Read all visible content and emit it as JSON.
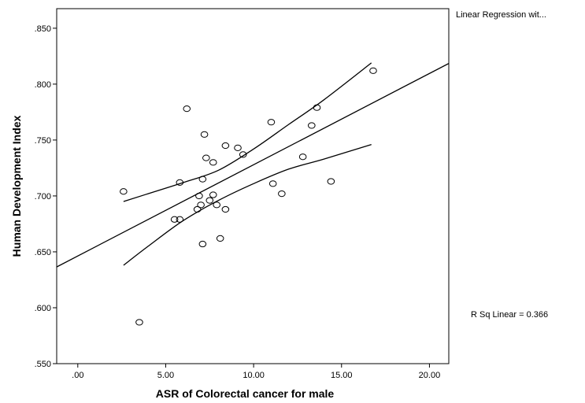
{
  "chart_data": {
    "type": "scatter",
    "xlabel": "ASR of Colorectal cancer for male",
    "ylabel": "Human Development Index",
    "xlim": [
      -1.2,
      21.1
    ],
    "ylim": [
      0.55,
      0.8675
    ],
    "x_ticks": [
      0,
      5,
      10,
      15,
      20
    ],
    "x_tick_labels": [
      ".00",
      "5.00",
      "10.00",
      "15.00",
      "20.00"
    ],
    "y_ticks": [
      0.55,
      0.6,
      0.65,
      0.7,
      0.75,
      0.8,
      0.85
    ],
    "y_tick_labels": [
      ".550",
      ".600",
      ".650",
      ".700",
      ".750",
      ".800",
      ".850"
    ],
    "grid": false,
    "legend_title": "Linear Regression wit...",
    "annotation": "R Sq Linear = 0.366",
    "points": [
      {
        "x": 2.6,
        "y": 0.704
      },
      {
        "x": 3.5,
        "y": 0.587
      },
      {
        "x": 5.5,
        "y": 0.679
      },
      {
        "x": 5.8,
        "y": 0.679
      },
      {
        "x": 5.8,
        "y": 0.712
      },
      {
        "x": 6.2,
        "y": 0.778
      },
      {
        "x": 6.8,
        "y": 0.688
      },
      {
        "x": 6.9,
        "y": 0.7
      },
      {
        "x": 7.0,
        "y": 0.692
      },
      {
        "x": 7.1,
        "y": 0.715
      },
      {
        "x": 7.1,
        "y": 0.657
      },
      {
        "x": 7.2,
        "y": 0.755
      },
      {
        "x": 7.3,
        "y": 0.734
      },
      {
        "x": 7.5,
        "y": 0.696
      },
      {
        "x": 7.7,
        "y": 0.701
      },
      {
        "x": 7.7,
        "y": 0.73
      },
      {
        "x": 7.9,
        "y": 0.692
      },
      {
        "x": 8.1,
        "y": 0.662
      },
      {
        "x": 8.4,
        "y": 0.688
      },
      {
        "x": 8.4,
        "y": 0.745
      },
      {
        "x": 9.1,
        "y": 0.743
      },
      {
        "x": 9.4,
        "y": 0.737
      },
      {
        "x": 11.0,
        "y": 0.766
      },
      {
        "x": 11.1,
        "y": 0.711
      },
      {
        "x": 11.6,
        "y": 0.702
      },
      {
        "x": 12.8,
        "y": 0.735
      },
      {
        "x": 13.3,
        "y": 0.763
      },
      {
        "x": 13.6,
        "y": 0.779
      },
      {
        "x": 14.4,
        "y": 0.713
      },
      {
        "x": 16.8,
        "y": 0.812
      }
    ],
    "regression_line": [
      {
        "x": -1.2,
        "y": 0.6365
      },
      {
        "x": 21.1,
        "y": 0.8185
      }
    ],
    "ci_upper": [
      {
        "x": 2.6,
        "y": 0.695
      },
      {
        "x": 4.0,
        "y": 0.702
      },
      {
        "x": 6.0,
        "y": 0.712
      },
      {
        "x": 8.0,
        "y": 0.723
      },
      {
        "x": 10.0,
        "y": 0.742
      },
      {
        "x": 12.0,
        "y": 0.764
      },
      {
        "x": 14.0,
        "y": 0.786
      },
      {
        "x": 16.7,
        "y": 0.819
      }
    ],
    "ci_lower": [
      {
        "x": 2.6,
        "y": 0.638
      },
      {
        "x": 4.0,
        "y": 0.655
      },
      {
        "x": 6.0,
        "y": 0.678
      },
      {
        "x": 8.0,
        "y": 0.696
      },
      {
        "x": 10.0,
        "y": 0.711
      },
      {
        "x": 12.0,
        "y": 0.724
      },
      {
        "x": 14.0,
        "y": 0.733
      },
      {
        "x": 16.7,
        "y": 0.746
      }
    ]
  }
}
